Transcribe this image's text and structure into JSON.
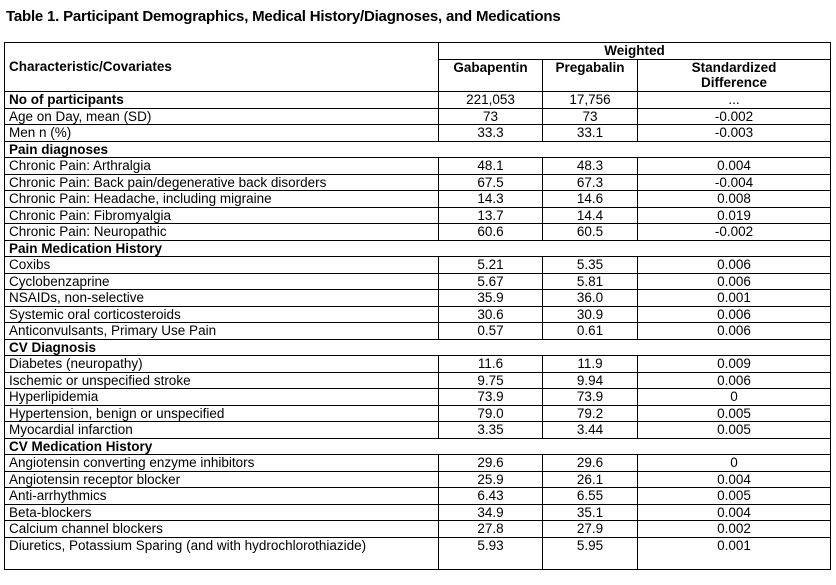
{
  "title": "Table 1. Participant Demographics, Medical History/Diagnoses, and Medications",
  "header": {
    "group": "Weighted",
    "characteristic": "Characteristic/Covariates",
    "gabapentin": "Gabapentin",
    "pregabalin": "Pregabalin",
    "std_diff": "Standardized Difference"
  },
  "rows": [
    {
      "label": "No of participants",
      "gaba": "221,053",
      "pre": "17,756",
      "diff": "...",
      "bold": true
    },
    {
      "label": "Age on Day, mean (SD)",
      "gaba": "73",
      "pre": "73",
      "diff": "-0.002"
    },
    {
      "label": "Men n (%)",
      "gaba": "33.3",
      "pre": "33.1",
      "diff": "-0.003"
    },
    {
      "section": "Pain diagnoses"
    },
    {
      "label": "Chronic Pain: Arthralgia",
      "gaba": "48.1",
      "pre": "48.3",
      "diff": "0.004"
    },
    {
      "label": "Chronic Pain: Back pain/degenerative back disorders",
      "gaba": "67.5",
      "pre": "67.3",
      "diff": "-0.004"
    },
    {
      "label": "Chronic Pain: Headache, including migraine",
      "gaba": "14.3",
      "pre": "14.6",
      "diff": "0.008"
    },
    {
      "label": "Chronic Pain: Fibromyalgia",
      "gaba": "13.7",
      "pre": "14.4",
      "diff": "0.019"
    },
    {
      "label": "Chronic Pain: Neuropathic",
      "gaba": "60.6",
      "pre": "60.5",
      "diff": "-0.002"
    },
    {
      "section": "Pain Medication History"
    },
    {
      "label": "Coxibs",
      "gaba": "5.21",
      "pre": "5.35",
      "diff": "0.006"
    },
    {
      "label": "Cyclobenzaprine",
      "gaba": "5.67",
      "pre": "5.81",
      "diff": "0.006"
    },
    {
      "label": "NSAIDs, non-selective",
      "gaba": "35.9",
      "pre": "36.0",
      "diff": "0.001"
    },
    {
      "label": "Systemic oral corticosteroids",
      "gaba": "30.6",
      "pre": "30.9",
      "diff": "0.006"
    },
    {
      "label": "Anticonvulsants, Primary Use Pain",
      "gaba": "0.57",
      "pre": "0.61",
      "diff": "0.006"
    },
    {
      "section": "CV Diagnosis"
    },
    {
      "label": "Diabetes (neuropathy)",
      "gaba": "11.6",
      "pre": "11.9",
      "diff": "0.009"
    },
    {
      "label": "Ischemic or unspecified stroke",
      "gaba": "9.75",
      "pre": "9.94",
      "diff": "0.006"
    },
    {
      "label": "Hyperlipidemia",
      "gaba": "73.9",
      "pre": "73.9",
      "diff": "0"
    },
    {
      "label": "Hypertension, benign or unspecified",
      "gaba": "79.0",
      "pre": "79.2",
      "diff": "0.005"
    },
    {
      "label": "Myocardial infarction",
      "gaba": "3.35",
      "pre": "3.44",
      "diff": "0.005"
    },
    {
      "section": "CV Medication History"
    },
    {
      "label": "Angiotensin converting enzyme inhibitors",
      "gaba": "29.6",
      "pre": "29.6",
      "diff": "0"
    },
    {
      "label": "Angiotensin receptor blocker",
      "gaba": "25.9",
      "pre": "26.1",
      "diff": "0.004"
    },
    {
      "label": "Anti-arrhythmics",
      "gaba": "6.43",
      "pre": "6.55",
      "diff": "0.005"
    },
    {
      "label": "Beta-blockers",
      "gaba": "34.9",
      "pre": "35.1",
      "diff": "0.004"
    },
    {
      "label": "Calcium channel blockers",
      "gaba": "27.8",
      "pre": "27.9",
      "diff": "0.002"
    },
    {
      "label": "Diuretics, Potassium Sparing (and with hydrochlorothiazide)",
      "gaba": "5.93",
      "pre": "5.95",
      "diff": "0.001",
      "tall": true
    }
  ]
}
